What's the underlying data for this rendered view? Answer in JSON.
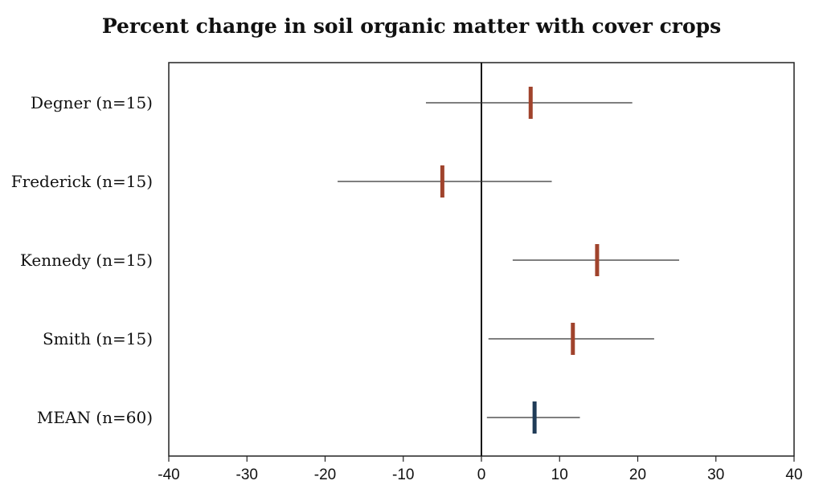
{
  "chart_data": {
    "type": "forest",
    "title": "Percent change in soil organic matter with cover crops",
    "xlabel": "",
    "ylabel": "",
    "xlim": [
      -40,
      40
    ],
    "xticks": [
      -40,
      -30,
      -20,
      -10,
      0,
      10,
      20,
      30,
      40
    ],
    "xtick_labels": [
      "-40",
      "-30",
      "-20",
      "-10",
      "0",
      "10",
      "20",
      "30",
      "40"
    ],
    "grid": false,
    "reference_line": 0,
    "rows": [
      {
        "label": "Degner (n=15)",
        "estimate": 6.3,
        "lower": -7.1,
        "upper": 19.3,
        "color": "#a0432c"
      },
      {
        "label": "Frederick (n=15)",
        "estimate": -5.0,
        "lower": -18.4,
        "upper": 9.0,
        "color": "#a0432c"
      },
      {
        "label": "Kennedy (n=15)",
        "estimate": 14.8,
        "lower": 4.0,
        "upper": 25.3,
        "color": "#a0432c"
      },
      {
        "label": "Smith (n=15)",
        "estimate": 11.7,
        "lower": 0.9,
        "upper": 22.1,
        "color": "#a0432c"
      },
      {
        "label": "MEAN (n=60)",
        "estimate": 6.8,
        "lower": 0.7,
        "upper": 12.6,
        "color": "#1f3b57"
      }
    ]
  }
}
